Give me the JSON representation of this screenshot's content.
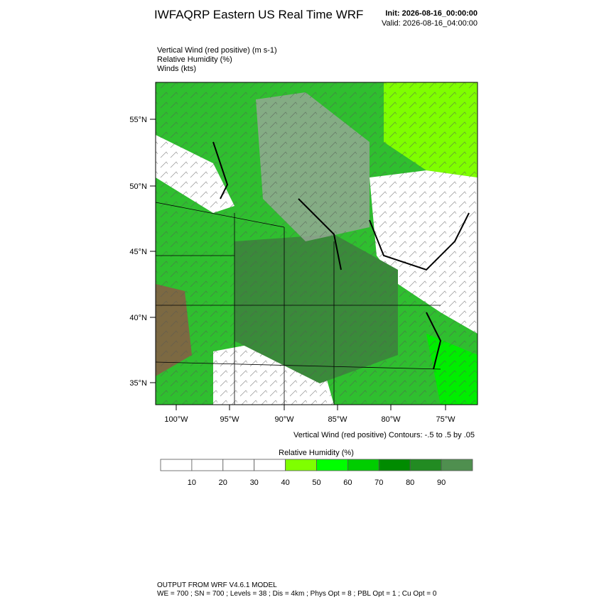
{
  "header": {
    "title": "IWFAQRP Eastern US Real Time WRF",
    "init": "Init: 2026-08-16_00:00:00",
    "valid": "Valid: 2026-08-16_04:00:00"
  },
  "fields": [
    "Vertical Wind (red positive)   (m s-1)",
    "Relative Humidity   (%)",
    "Winds   (kts)"
  ],
  "map": {
    "lat_labels": [
      "55°N",
      "50°N",
      "45°N",
      "40°N",
      "35°N"
    ],
    "lon_labels": [
      "100°W",
      "95°W",
      "90°W",
      "85°W",
      "80°W",
      "75°W"
    ]
  },
  "contour_note": "Vertical Wind (red positive) Contours: -.5 to .5 by .05",
  "colorbar": {
    "title": "Relative Humidity  (%)",
    "ticks": [
      10,
      20,
      30,
      40,
      50,
      60,
      70,
      80,
      90
    ],
    "colors": [
      "#ffffff",
      "#ffffff",
      "#ffffff",
      "#ffffff",
      "#7fff00",
      "#00ff00",
      "#00cd00",
      "#008b00",
      "#228b22",
      "#4f8f4f"
    ]
  },
  "footer": {
    "line1": "OUTPUT FROM WRF V4.6.1 MODEL",
    "line2": "WE = 700 ; SN = 700 ; Levels = 38 ; Dis = 4km ; Phys Opt = 8 ; PBL Opt = 1 ; Cu Opt = 0"
  }
}
